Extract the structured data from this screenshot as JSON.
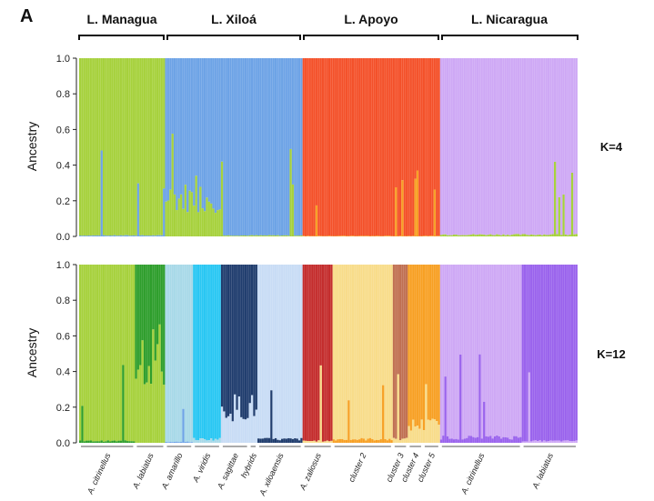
{
  "panel_letter": "A",
  "colors": {
    "managua_green": "#a6d13c",
    "xiloa_blue": "#6da3e6",
    "apoyo_red": "#f4512a",
    "nicaragua_purple": "#cea8f5",
    "dark_green": "#2e9e2c",
    "light_cyan": "#a8d9e8",
    "bright_cyan": "#29c7f3",
    "navy": "#203d6e",
    "pale_blue": "#c8dcf5",
    "dark_red": "#c42d2d",
    "pale_yellow": "#f8dc8a",
    "brown": "#c07052",
    "orange": "#f7a024",
    "violet": "#9a63ed"
  },
  "chart_data": [
    {
      "type": "bar",
      "title": "",
      "ylabel": "Ancestry",
      "ylim": [
        0,
        1
      ],
      "yticks": [
        "0.0",
        "0.2",
        "0.4",
        "0.6",
        "0.8",
        "1.0"
      ],
      "k_label": "K=4",
      "lakes": [
        {
          "name": "L. Managua",
          "n": 40
        },
        {
          "name": "L. Xiloá",
          "n": 64
        },
        {
          "name": "L. Apoyo",
          "n": 64
        },
        {
          "name": "L. Nicaragua",
          "n": 64
        }
      ],
      "blocks": [
        {
          "n": 40,
          "main": "#a6d13c",
          "minor": "#6da3e6",
          "minor_frac": 0.005
        },
        {
          "n": 26,
          "main": "#6da3e6",
          "minor": "#a6d13c",
          "minor_frac": 0.22
        },
        {
          "n": 38,
          "main": "#6da3e6",
          "minor": "#a6d13c",
          "minor_frac": 0.005
        },
        {
          "n": 64,
          "main": "#f4512a",
          "minor": "#f7a024",
          "minor_frac": 0.003
        },
        {
          "n": 64,
          "main": "#cea8f5",
          "minor": "#a6d13c",
          "minor_frac": 0.01
        }
      ]
    },
    {
      "type": "bar",
      "title": "",
      "ylabel": "Ancestry",
      "ylim": [
        0,
        1
      ],
      "yticks": [
        "0.0",
        "0.2",
        "0.4",
        "0.6",
        "0.8",
        "1.0"
      ],
      "k_label": "K=12",
      "groups": [
        {
          "label": "A. citrinellus",
          "n": 26
        },
        {
          "label": "A. labiatus",
          "n": 14
        },
        {
          "label": "A. amarillo",
          "n": 13
        },
        {
          "label": "A. viridis",
          "n": 13
        },
        {
          "label": "A. sagittae",
          "n": 13
        },
        {
          "label": "hybrids",
          "n": 4
        },
        {
          "label": "A. xiloaensis",
          "n": 21
        },
        {
          "label": "A. zaliosus",
          "n": 14
        },
        {
          "label": "cluster 2",
          "n": 28
        },
        {
          "label": "cluster 3",
          "n": 7
        },
        {
          "label": "cluster 4",
          "n": 7
        },
        {
          "label": "cluster 5",
          "n": 8
        },
        {
          "label": "A. citrinellus",
          "n": 38
        },
        {
          "label": "A. labiatus",
          "n": 26
        }
      ],
      "blocks": [
        {
          "n": 26,
          "main": "#a6d13c",
          "minor": "#2e9e2c",
          "minor_frac": 0.01
        },
        {
          "n": 14,
          "main": "#2e9e2c",
          "minor": "#a6d13c",
          "minor_frac": 0.5
        },
        {
          "n": 13,
          "main": "#a8d9e8",
          "minor": "#6da3e6",
          "minor_frac": 0.005
        },
        {
          "n": 13,
          "main": "#29c7f3",
          "minor": "#a8d9e8",
          "minor_frac": 0.02
        },
        {
          "n": 17,
          "main": "#203d6e",
          "minor": "#c8dcf5",
          "minor_frac": 0.2
        },
        {
          "n": 21,
          "main": "#c8dcf5",
          "minor": "#203d6e",
          "minor_frac": 0.02
        },
        {
          "n": 14,
          "main": "#c42d2d",
          "minor": "#f8dc8a",
          "minor_frac": 0.01
        },
        {
          "n": 28,
          "main": "#f8dc8a",
          "minor": "#f7a024",
          "minor_frac": 0.02
        },
        {
          "n": 7,
          "main": "#c07052",
          "minor": "#f8dc8a",
          "minor_frac": 0.02
        },
        {
          "n": 15,
          "main": "#f7a024",
          "minor": "#f8dc8a",
          "minor_frac": 0.1
        },
        {
          "n": 38,
          "main": "#cea8f5",
          "minor": "#9a63ed",
          "minor_frac": 0.03
        },
        {
          "n": 26,
          "main": "#9a63ed",
          "minor": "#cea8f5",
          "minor_frac": 0.01
        }
      ]
    }
  ]
}
